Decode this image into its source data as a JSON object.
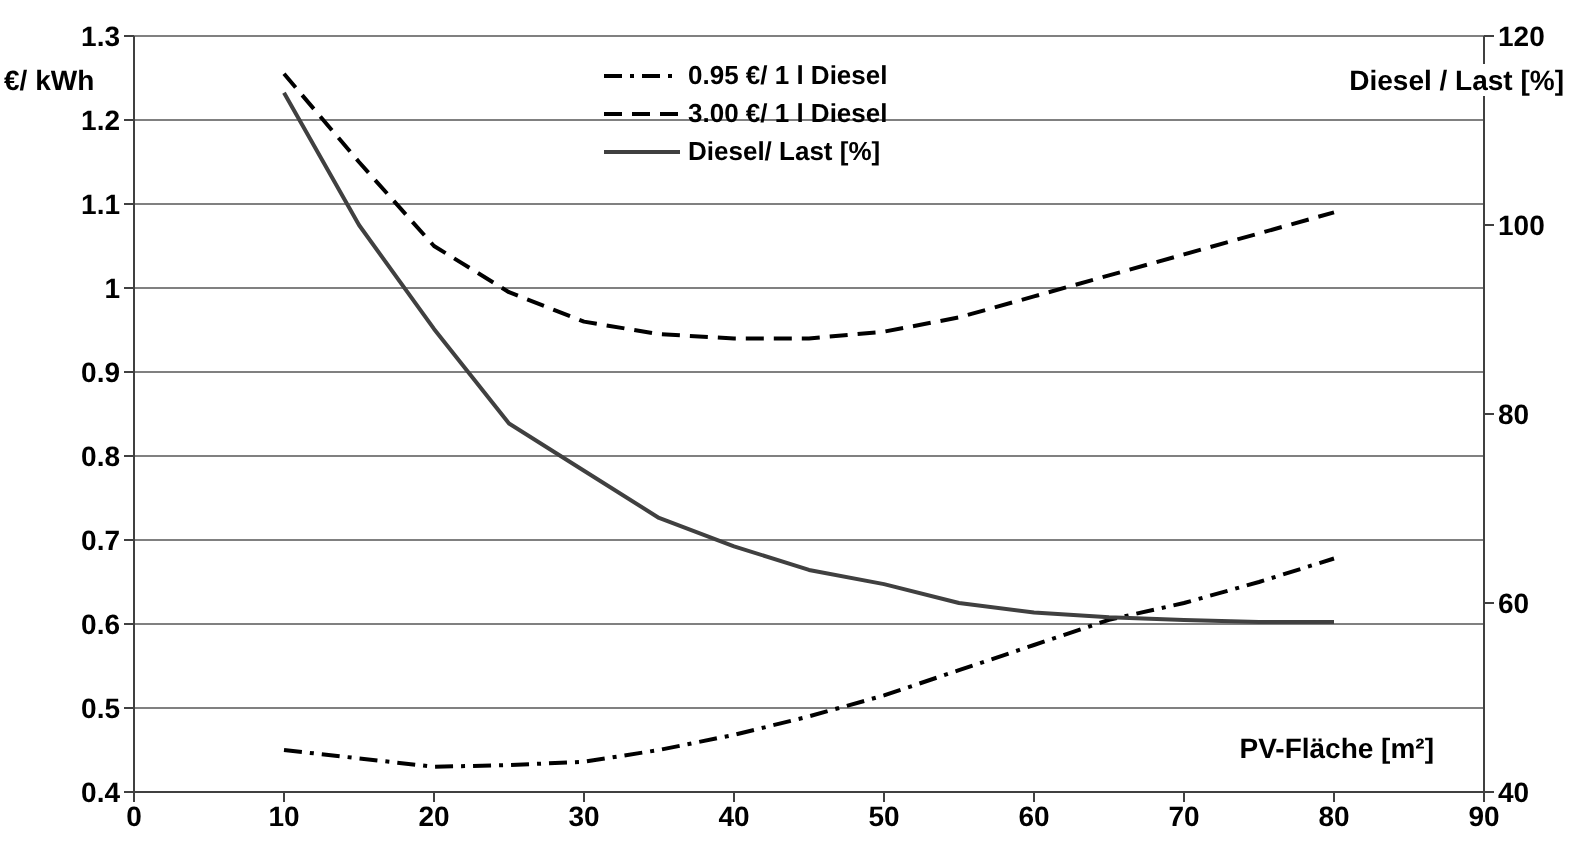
{
  "chart_data": {
    "type": "line",
    "ylabel": "€/ kWh",
    "y2label": "Diesel / Last [%]",
    "xlabel": "PV-Fläche [m²]",
    "x": [
      10,
      15,
      20,
      25,
      30,
      35,
      40,
      45,
      50,
      55,
      60,
      65,
      70,
      75,
      80
    ],
    "series": [
      {
        "name": "0.95 €/ 1 l Diesel",
        "color": "#000000",
        "line_style": "dotted",
        "values": [
          0.45,
          0.44,
          0.43,
          0.432,
          0.436,
          0.45,
          0.468,
          0.49,
          0.515,
          0.545,
          0.575,
          0.605,
          0.625,
          0.65,
          0.678
        ]
      },
      {
        "name": "3.00 €/ 1 l Diesel",
        "color": "#000000",
        "line_style": "dashed",
        "values": [
          1.255,
          1.15,
          1.05,
          0.995,
          0.96,
          0.945,
          0.94,
          0.94,
          0.948,
          0.965,
          0.99,
          1.015,
          1.04,
          1.065,
          1.09
        ]
      },
      {
        "name": "Diesel/ Last [%]",
        "color": "#404040",
        "line_style": "solid",
        "axis": "y2",
        "values": [
          114,
          100,
          89,
          79,
          74,
          69,
          66,
          63.5,
          62,
          60,
          59,
          58.5,
          58.2,
          58,
          58
        ]
      }
    ],
    "xlim": [
      0,
      90
    ],
    "xticks": [
      0,
      10,
      20,
      30,
      40,
      50,
      60,
      70,
      80,
      90
    ],
    "ylim": [
      0.4,
      1.3
    ],
    "yticks": [
      0.4,
      0.5,
      0.6,
      0.7,
      0.8,
      0.9,
      1,
      1.1,
      1.2,
      1.3
    ],
    "y2lim": [
      40,
      120
    ],
    "y2ticks": [
      40,
      60,
      80,
      100,
      120
    ],
    "grid": "y",
    "legend": "top",
    "marker": "none"
  }
}
